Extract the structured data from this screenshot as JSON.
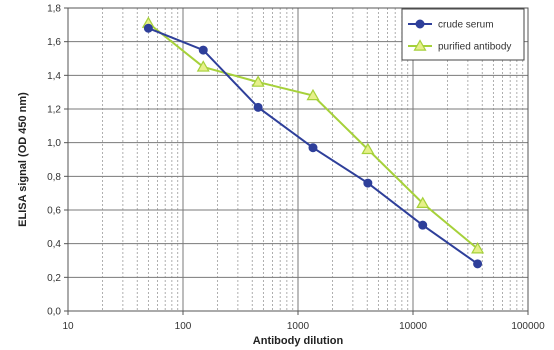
{
  "chart_data": {
    "type": "line",
    "xlabel": "Antibody dilution",
    "ylabel": "ELISA signal (OD 450 nm)",
    "x_scale": "log",
    "xlim": [
      10,
      100000
    ],
    "ylim": [
      0,
      1.8
    ],
    "x_ticks": [
      "10",
      "100",
      "1000",
      "10000",
      "100000"
    ],
    "y_ticks": [
      "0,0",
      "0,2",
      "0,4",
      "0,6",
      "0,8",
      "1,0",
      "1,2",
      "1,4",
      "1,6",
      "1,8"
    ],
    "grid": true,
    "legend_position": "top-right",
    "series": [
      {
        "name": "crude serum",
        "color": "#2e3f9a",
        "marker": "circle",
        "x": [
          50,
          150,
          450,
          1350,
          4050,
          12150,
          36450
        ],
        "y": [
          1.68,
          1.55,
          1.21,
          0.97,
          0.76,
          0.51,
          0.28
        ]
      },
      {
        "name": "purified antibody",
        "color": "#a6d13a",
        "marker": "triangle",
        "x": [
          50,
          150,
          450,
          1350,
          4050,
          12150,
          36450
        ],
        "y": [
          1.71,
          1.45,
          1.36,
          1.28,
          0.96,
          0.64,
          0.37
        ]
      }
    ]
  }
}
